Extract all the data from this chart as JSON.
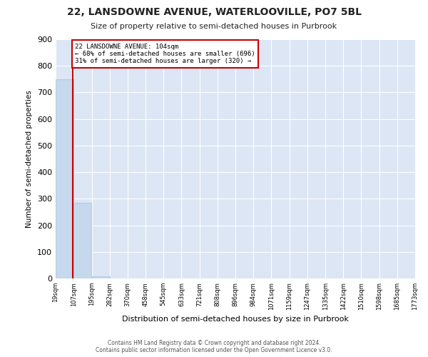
{
  "title": "22, LANSDOWNE AVENUE, WATERLOOVILLE, PO7 5BL",
  "subtitle": "Size of property relative to semi-detached houses in Purbrook",
  "xlabel": "Distribution of semi-detached houses by size in Purbrook",
  "ylabel": "Number of semi-detached properties",
  "property_size": 104,
  "annotation_line1": "22 LANSDOWNE AVENUE: 104sqm",
  "annotation_line2": "← 68% of semi-detached houses are smaller (696)",
  "annotation_line3": "31% of semi-detached houses are larger (320) →",
  "bar_color": "#c5d8ed",
  "bar_edge_color": "#a8c0df",
  "redline_color": "#cc0000",
  "annotation_box_color": "#cc0000",
  "bg_color": "#dce6f5",
  "grid_color": "#ffffff",
  "fig_bg_color": "#ffffff",
  "bin_edges": [
    19,
    107,
    195,
    282,
    370,
    458,
    545,
    633,
    721,
    808,
    896,
    984,
    1071,
    1159,
    1247,
    1335,
    1422,
    1510,
    1598,
    1685,
    1773
  ],
  "bin_labels": [
    "19sqm",
    "107sqm",
    "195sqm",
    "282sqm",
    "370sqm",
    "458sqm",
    "545sqm",
    "633sqm",
    "721sqm",
    "808sqm",
    "896sqm",
    "984sqm",
    "1071sqm",
    "1159sqm",
    "1247sqm",
    "1335sqm",
    "1422sqm",
    "1510sqm",
    "1598sqm",
    "1685sqm",
    "1773sqm"
  ],
  "bar_heights": [
    750,
    285,
    8,
    0,
    0,
    0,
    0,
    0,
    0,
    0,
    0,
    0,
    0,
    0,
    0,
    0,
    0,
    0,
    0,
    0
  ],
  "ylim": [
    0,
    900
  ],
  "yticks": [
    0,
    100,
    200,
    300,
    400,
    500,
    600,
    700,
    800,
    900
  ],
  "footer_line1": "Contains HM Land Registry data © Crown copyright and database right 2024.",
  "footer_line2": "Contains public sector information licensed under the Open Government Licence v3.0."
}
